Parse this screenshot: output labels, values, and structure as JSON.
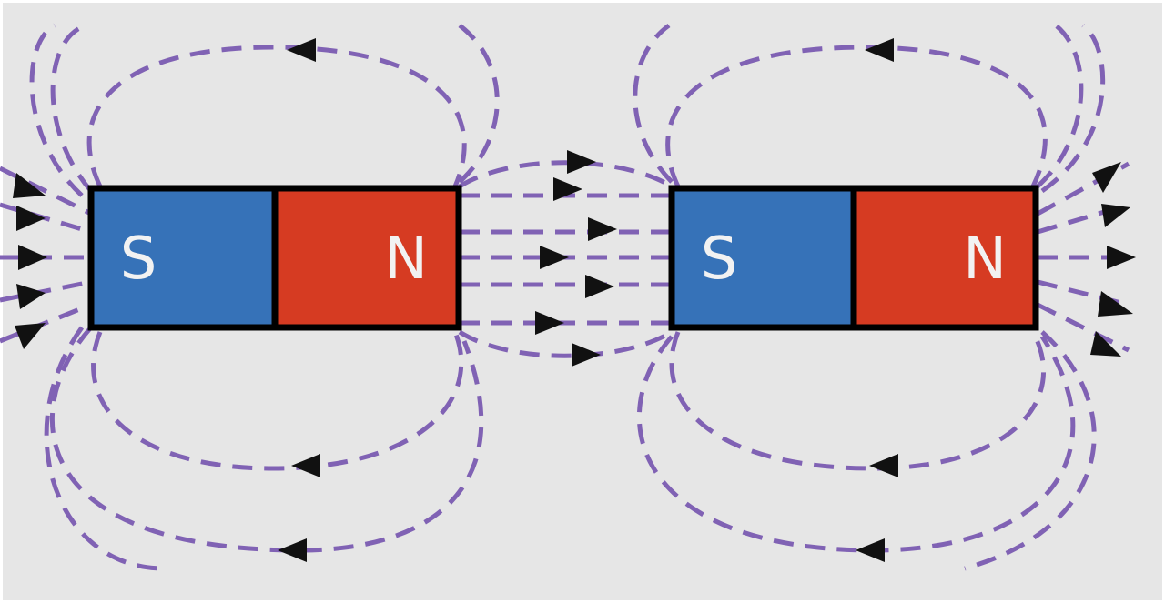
{
  "diagram": {
    "title": "",
    "magnets": [
      {
        "south": {
          "label": "S",
          "color": "#3672b8"
        },
        "north": {
          "label": "N",
          "color": "#d63b22"
        }
      },
      {
        "south": {
          "label": "S",
          "color": "#3672b8"
        },
        "north": {
          "label": "N",
          "color": "#d63b22"
        }
      }
    ],
    "colors": {
      "background": "#e6e6e6",
      "border": "#000000",
      "field_line": "#8062b4",
      "arrow": "#111111",
      "label": "#f2f2f2"
    }
  }
}
